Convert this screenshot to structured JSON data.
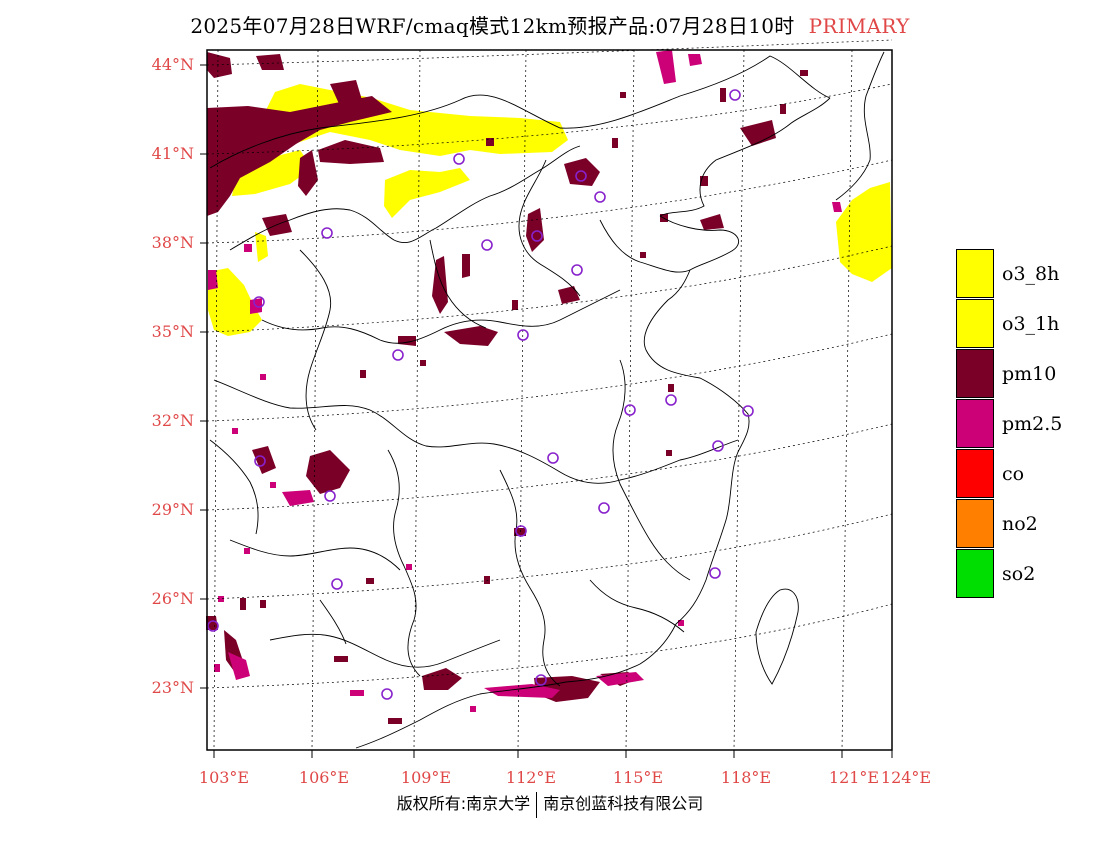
{
  "header": {
    "title": "2025年07月28日WRF/cmaq模式12km预报产品:07月28日10时",
    "tag": "PRIMARY"
  },
  "axes": {
    "lat_labels": [
      "44°N",
      "41°N",
      "38°N",
      "35°N",
      "32°N",
      "29°N",
      "26°N",
      "23°N"
    ],
    "lon_labels": [
      "103°E",
      "106°E",
      "109°E",
      "112°E",
      "115°E",
      "118°E",
      "121°E",
      "124°E"
    ]
  },
  "legend": [
    {
      "label": "o3_8h",
      "color": "#ffff00"
    },
    {
      "label": "o3_1h",
      "color": "#ffff00"
    },
    {
      "label": "pm10",
      "color": "#7a0028"
    },
    {
      "label": "pm2.5",
      "color": "#cc0077"
    },
    {
      "label": "co",
      "color": "#ff0000"
    },
    {
      "label": "no2",
      "color": "#ff7f00"
    },
    {
      "label": "so2",
      "color": "#00dd00"
    }
  ],
  "footer": {
    "left": "版权所有:南京大学",
    "right": "南京创蓝科技有限公司"
  },
  "colors": {
    "o3": "#ffff00",
    "pm10": "#7a0028",
    "pm25": "#cc0077",
    "station_ring": "#8822cc",
    "axis_label": "#e04848"
  }
}
